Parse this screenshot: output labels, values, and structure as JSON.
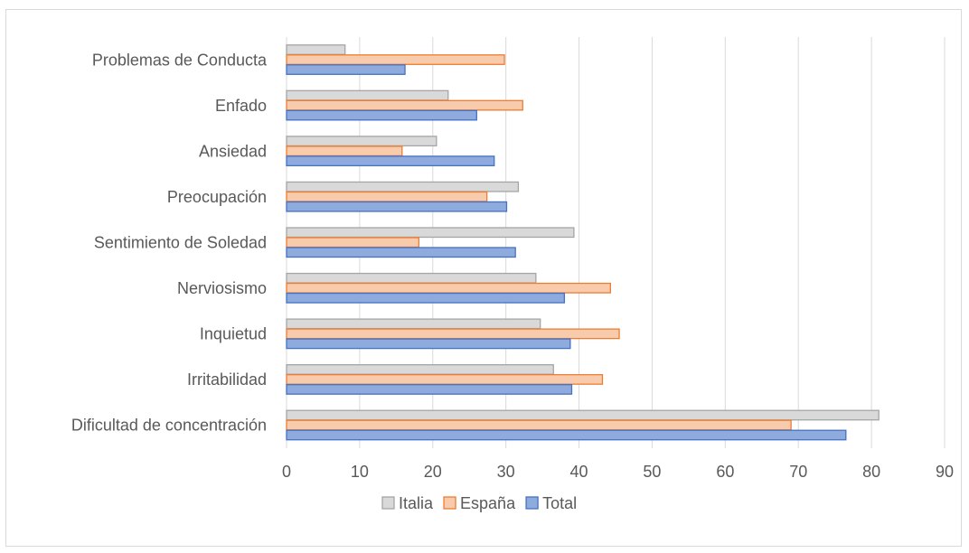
{
  "chart_data": {
    "type": "bar",
    "orientation": "horizontal",
    "categories": [
      "Dificultad de concentración",
      "Irritabilidad",
      "Inquietud",
      "Nerviosismo",
      "Sentimiento de Soledad",
      "Preocupación",
      "Ansiedad",
      "Enfado",
      "Problemas de Conducta"
    ],
    "series": [
      {
        "name": "Total",
        "color": "#4472c4",
        "fill": "#8faadc",
        "values": [
          76.5,
          39.0,
          38.8,
          38.0,
          31.3,
          30.1,
          28.4,
          26.0,
          16.2
        ]
      },
      {
        "name": "España",
        "color": "#ed7d31",
        "fill": "#f8cbad",
        "values": [
          69.0,
          43.2,
          45.5,
          44.3,
          18.1,
          27.4,
          15.8,
          32.3,
          29.8
        ]
      },
      {
        "name": "Italia",
        "color": "#a5a5a5",
        "fill": "#d9d9d9",
        "values": [
          81.0,
          36.5,
          34.7,
          34.1,
          39.3,
          31.7,
          20.5,
          22.1,
          8.0
        ]
      }
    ],
    "xlim": [
      0,
      90
    ],
    "xticks": [
      "0",
      "10",
      "20",
      "30",
      "40",
      "50",
      "60",
      "70",
      "80",
      "90"
    ],
    "grid": true,
    "legend": {
      "position": "bottom",
      "order": [
        "Italia",
        "España",
        "Total"
      ]
    },
    "title": "",
    "xlabel": "",
    "ylabel": ""
  }
}
